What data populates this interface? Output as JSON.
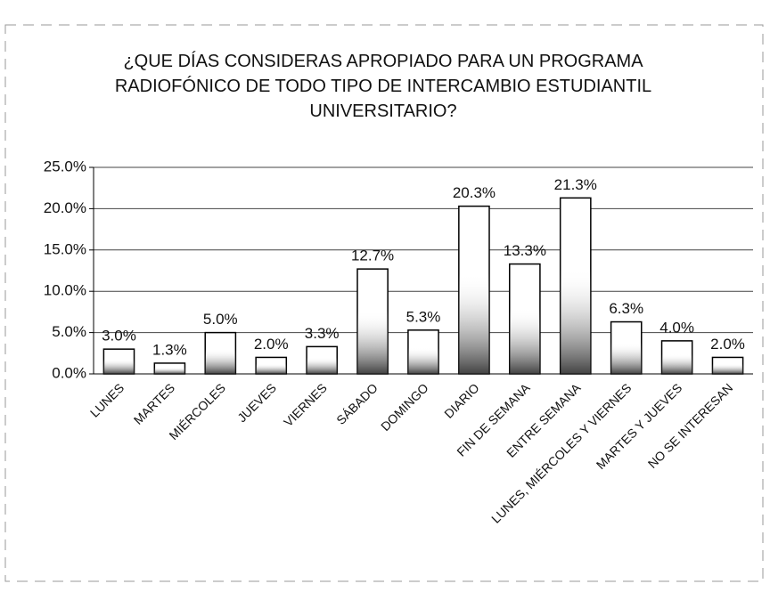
{
  "chart_data": {
    "type": "bar",
    "title": "¿QUE DÍAS CONSIDERAS APROPIADO PARA UN PROGRAMA RADIOFÓNICO DE TODO TIPO DE INTERCAMBIO ESTUDIANTIL UNIVERSITARIO?",
    "categories": [
      "LUNES",
      "MARTES",
      "MIÉRCOLES",
      "JUEVES",
      "VIERNES",
      "SÁBADO",
      "DOMINGO",
      "DIARIO",
      "FIN DE SEMANA",
      "ENTRE SEMANA",
      "LUNES, MIÉRCOLES Y VIERNES",
      "MARTES Y JUEVES",
      "NO SE INTERESAN"
    ],
    "values": [
      3.0,
      1.3,
      5.0,
      2.0,
      3.3,
      12.7,
      5.3,
      20.3,
      13.3,
      21.3,
      6.3,
      4.0,
      2.0
    ],
    "value_labels": [
      "3.0%",
      "1.3%",
      "5.0%",
      "2.0%",
      "3.3%",
      "12.7%",
      "5.3%",
      "20.3%",
      "13.3%",
      "21.3%",
      "6.3%",
      "4.0%",
      "2.0%"
    ],
    "color": "#ffffff",
    "ylim": [
      0,
      25
    ],
    "yticks": [
      {
        "value": 0,
        "label": "0.0%"
      },
      {
        "value": 5,
        "label": "5.0%"
      },
      {
        "value": 10,
        "label": "10.0%"
      },
      {
        "value": 15,
        "label": "15.0%"
      },
      {
        "value": 20,
        "label": "20.0%"
      },
      {
        "value": 25,
        "label": "25.0%"
      }
    ],
    "grid": true
  }
}
